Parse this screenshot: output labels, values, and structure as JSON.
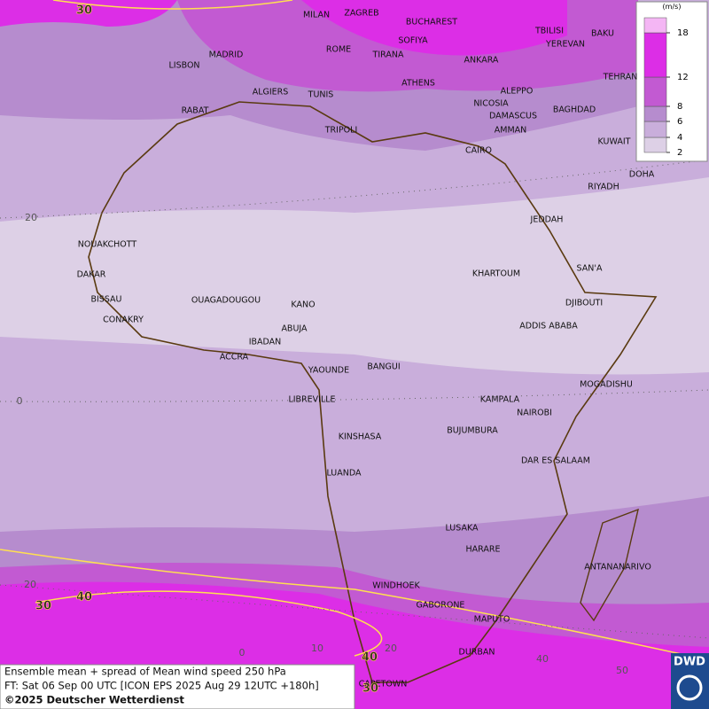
{
  "map": {
    "cities": [
      "MILAN",
      "ZAGREB",
      "BUCHAREST",
      "TBILISI",
      "BAKU",
      "MADRID",
      "ROME",
      "SOFIYA",
      "YEREVAN",
      "LISBON",
      "TIRANA",
      "ANKARA",
      "TEHRAN",
      "ALGIERS",
      "TUNIS",
      "ATHENS",
      "ALEPPO",
      "RABAT",
      "NICOSIA",
      "BAGHDAD",
      "DAMASCUS",
      "TRIPOLI",
      "AMMAN",
      "KUWAIT",
      "CAIRO",
      "DOHA",
      "RIYADH",
      "JEDDAH",
      "NOUAKCHOTT",
      "DAKAR",
      "SAN'A",
      "KHARTOUM",
      "BISSAU",
      "OUAGADOUGOU",
      "KANO",
      "DJIBOUTI",
      "CONAKRY",
      "ABUJA",
      "ADDIS ABABA",
      "IBADAN",
      "ACCRA",
      "BANGUI",
      "YAOUNDE",
      "MOGADISHU",
      "LIBREVILLE",
      "KAMPALA",
      "NAIROBI",
      "KINSHASA",
      "BUJUMBURA",
      "DAR ES SALAAM",
      "LUANDA",
      "LUSAKA",
      "HARARE",
      "ANTANANARIVO",
      "WINDHOEK",
      "GABORONE",
      "MAPUTO",
      "DURBAN",
      "CAPETOWN"
    ],
    "contour_labels": [
      "30",
      "30",
      "40",
      "40",
      "30"
    ],
    "lat_labels": [
      "20",
      "0",
      "20"
    ],
    "lon_labels": [
      "0",
      "10",
      "20",
      "40",
      "50"
    ]
  },
  "legend": {
    "unit": "(m/s)",
    "levels": [
      2,
      4,
      6,
      8,
      12,
      18
    ],
    "colors": [
      "#ddd0e6",
      "#c9aedb",
      "#b68cce",
      "#c25ad2",
      "#dc2ee6",
      "#f4b6f4"
    ]
  },
  "info": {
    "line1": "Ensemble mean + spread of Mean wind speed 250 hPa",
    "line2": "FT: Sat 06 Sep 00 UTC [ICON EPS 2025 Aug 29 12UTC +180h]",
    "line3": "©2025 Deutscher Wetterdienst"
  },
  "logo": "DWD"
}
